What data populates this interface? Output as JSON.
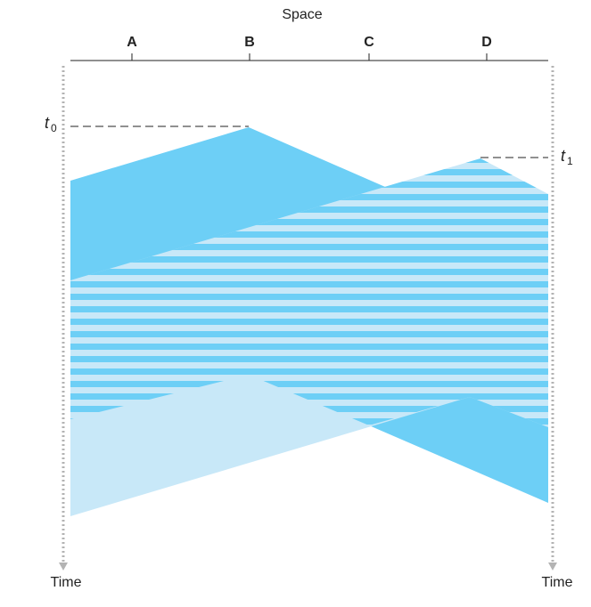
{
  "header": {
    "axis_label": "Space"
  },
  "nodes": [
    "A",
    "B",
    "C",
    "D"
  ],
  "time_axis": {
    "left_label": "Time",
    "right_label": "Time"
  },
  "events": {
    "t0": {
      "symbol": "t",
      "subscript": "0"
    },
    "t1": {
      "symbol": "t",
      "subscript": "1"
    }
  },
  "colors": {
    "signal_from_B": "#6dcff6",
    "signal_from_D": "#c8e8f8",
    "collision_stripe": "#ffffff",
    "time_axis": "#b3b3b3",
    "text": "#222222"
  }
}
